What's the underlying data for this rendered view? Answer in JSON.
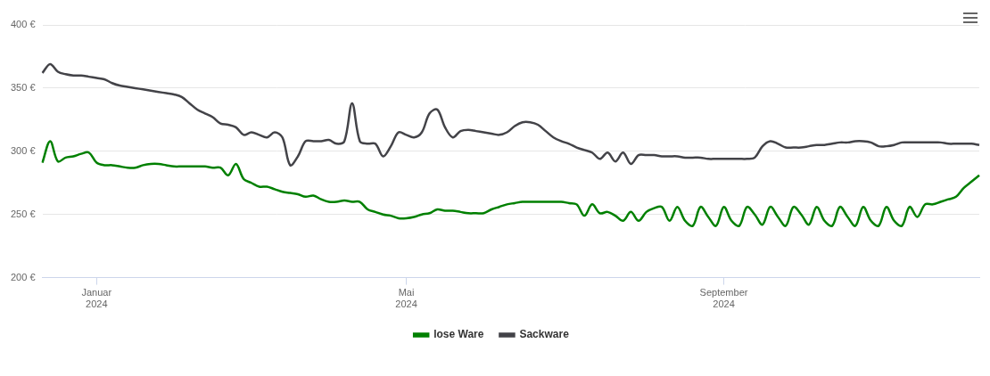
{
  "chart_data": {
    "type": "line",
    "categories": [
      null,
      null,
      null,
      null,
      null,
      null,
      null,
      "Januar\n2024",
      null,
      null,
      null,
      null,
      null,
      null,
      null,
      null,
      null,
      null,
      null,
      null,
      null,
      null,
      null,
      null,
      null,
      null,
      null,
      null,
      null,
      null,
      null,
      null,
      null,
      null,
      null,
      null,
      null,
      null,
      null,
      null,
      null,
      null,
      null,
      null,
      null,
      null,
      null,
      "Mai\n2024",
      null,
      null,
      null,
      null,
      null,
      null,
      null,
      null,
      null,
      null,
      null,
      null,
      null,
      null,
      null,
      null,
      null,
      null,
      null,
      null,
      null,
      null,
      null,
      null,
      null,
      null,
      null,
      null,
      null,
      null,
      null,
      null,
      null,
      null,
      null,
      null,
      null,
      null,
      null,
      null,
      "September\n2024",
      null,
      null,
      null,
      null,
      null,
      null,
      null,
      null,
      null,
      null,
      null,
      null,
      null,
      null,
      null,
      null,
      null,
      null,
      null,
      null,
      null,
      null,
      null,
      null,
      null,
      null,
      null,
      null,
      null,
      null,
      null,
      null,
      null
    ],
    "series": [
      {
        "name": "lose Ware",
        "color": "#008000",
        "values": [
          291,
          308,
          292,
          295,
          296,
          298,
          299,
          291,
          289,
          289,
          288,
          287,
          287,
          289,
          290,
          290,
          289,
          288,
          288,
          288,
          288,
          288,
          287,
          287,
          281,
          290,
          278,
          275,
          272,
          272,
          270,
          268,
          267,
          266,
          264,
          265,
          262,
          260,
          260,
          261,
          260,
          260,
          254,
          252,
          250,
          249,
          247,
          247,
          248,
          250,
          251,
          254,
          253,
          253,
          252,
          251,
          251,
          251,
          254,
          256,
          258,
          259,
          260,
          260,
          260,
          260,
          260,
          260,
          259,
          258,
          249,
          258,
          251,
          252,
          249,
          245,
          252,
          245,
          252,
          255,
          256,
          245,
          256,
          245,
          241,
          256,
          248,
          241,
          256,
          245,
          241,
          256,
          250,
          242,
          256,
          248,
          241,
          256,
          250,
          242,
          256,
          245,
          241,
          256,
          248,
          241,
          256,
          245,
          241,
          256,
          245,
          241,
          256,
          248,
          258,
          258,
          260,
          262,
          264,
          271,
          276,
          281
        ]
      },
      {
        "name": "Sackware",
        "color": "#434348",
        "values": [
          362,
          369,
          363,
          361,
          360,
          360,
          359,
          358,
          357,
          354,
          352,
          351,
          350,
          349,
          348,
          347,
          346,
          345,
          343,
          338,
          333,
          330,
          327,
          322,
          321,
          319,
          313,
          315,
          313,
          311,
          315,
          311,
          289,
          296,
          308,
          308,
          308,
          309,
          306,
          308,
          338,
          308,
          306,
          306,
          296,
          304,
          315,
          313,
          311,
          315,
          330,
          333,
          319,
          311,
          316,
          317,
          316,
          315,
          314,
          313,
          315,
          320,
          323,
          323,
          321,
          316,
          311,
          308,
          306,
          303,
          301,
          299,
          294,
          299,
          292,
          299,
          290,
          297,
          297,
          297,
          296,
          296,
          296,
          295,
          295,
          295,
          294,
          294,
          294,
          294,
          294,
          294,
          295,
          304,
          308,
          306,
          303,
          303,
          303,
          304,
          305,
          305,
          306,
          307,
          307,
          308,
          308,
          307,
          304,
          304,
          305,
          307,
          307,
          307,
          307,
          307,
          307,
          306,
          306,
          306,
          306,
          305
        ]
      }
    ],
    "ylim": [
      200,
      400
    ],
    "yticks": [
      {
        "value": 200,
        "label": "200 €"
      },
      {
        "value": 250,
        "label": "250 €"
      },
      {
        "value": 300,
        "label": "300 €"
      },
      {
        "value": 350,
        "label": "350 €"
      },
      {
        "value": 400,
        "label": "400 €"
      }
    ],
    "grid": true,
    "legend": "bottom"
  }
}
